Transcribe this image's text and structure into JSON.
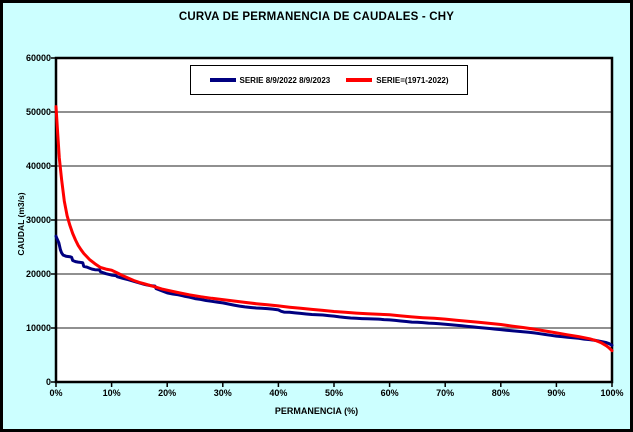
{
  "title": "CURVA DE PERMANENCIA DE CAUDALES - CHY",
  "colors": {
    "background": "#CCFFFF",
    "plot_background": "#FFFFFF",
    "gridline": "#808080",
    "frame": "#000000",
    "series_blue": "#000080",
    "series_red": "#FF0000"
  },
  "legend": {
    "items": [
      {
        "label": "SERIE 8/9/2022 8/9/2023",
        "color": "#000080"
      },
      {
        "label": "SERIE=(1971-2022)",
        "color": "#FF0000"
      }
    ]
  },
  "axes": {
    "xlabel": "PERMANENCIA (%)",
    "ylabel": "CAUDAL (m3/s)",
    "x_ticks": [
      "0%",
      "10%",
      "20%",
      "30%",
      "40%",
      "50%",
      "60%",
      "70%",
      "80%",
      "90%",
      "100%"
    ],
    "y_ticks": [
      "0",
      "10000",
      "20000",
      "30000",
      "40000",
      "50000",
      "60000"
    ]
  },
  "chart_data": {
    "type": "line",
    "title": "CURVA DE PERMANENCIA DE CAUDALES - CHY",
    "xlabel": "PERMANENCIA (%)",
    "ylabel": "CAUDAL (m3/s)",
    "xlim": [
      0,
      100
    ],
    "ylim": [
      0,
      60000
    ],
    "x_tick_step": 10,
    "y_tick_step": 10000,
    "grid": true,
    "legend_position": "top-center-inside",
    "series": [
      {
        "name": "SERIE 8/9/2022 8/9/2023",
        "color": "#000080",
        "points": [
          [
            0,
            27000
          ],
          [
            0.2,
            26500
          ],
          [
            0.5,
            25800
          ],
          [
            0.8,
            24500
          ],
          [
            1,
            23900
          ],
          [
            1.3,
            23500
          ],
          [
            1.8,
            23300
          ],
          [
            2.5,
            23200
          ],
          [
            2.8,
            23100
          ],
          [
            3,
            22500
          ],
          [
            3.5,
            22300
          ],
          [
            4,
            22200
          ],
          [
            4.8,
            22100
          ],
          [
            5,
            21400
          ],
          [
            5.5,
            21300
          ],
          [
            6,
            21100
          ],
          [
            6.5,
            20900
          ],
          [
            7,
            20800
          ],
          [
            7.8,
            20750
          ],
          [
            8,
            20400
          ],
          [
            9,
            20050
          ],
          [
            10,
            19800
          ],
          [
            10.8,
            19700
          ],
          [
            11,
            19500
          ],
          [
            12,
            19200
          ],
          [
            13,
            18950
          ],
          [
            14,
            18650
          ],
          [
            15,
            18350
          ],
          [
            16,
            18050
          ],
          [
            17,
            17850
          ],
          [
            17.8,
            17750
          ],
          [
            18,
            17300
          ],
          [
            19,
            16900
          ],
          [
            20,
            16500
          ],
          [
            21,
            16300
          ],
          [
            22,
            16150
          ],
          [
            23,
            15900
          ],
          [
            24,
            15700
          ],
          [
            25,
            15450
          ],
          [
            26,
            15300
          ],
          [
            27,
            15100
          ],
          [
            28,
            14950
          ],
          [
            29,
            14800
          ],
          [
            30,
            14650
          ],
          [
            31,
            14450
          ],
          [
            32,
            14250
          ],
          [
            33,
            14050
          ],
          [
            34,
            13900
          ],
          [
            35,
            13800
          ],
          [
            36,
            13700
          ],
          [
            37,
            13650
          ],
          [
            38,
            13600
          ],
          [
            39,
            13500
          ],
          [
            40,
            13350
          ],
          [
            40.5,
            13100
          ],
          [
            41,
            12950
          ],
          [
            42,
            12900
          ],
          [
            43,
            12800
          ],
          [
            44,
            12700
          ],
          [
            45,
            12600
          ],
          [
            46,
            12500
          ],
          [
            47,
            12450
          ],
          [
            48,
            12400
          ],
          [
            49,
            12300
          ],
          [
            50,
            12200
          ],
          [
            51,
            12050
          ],
          [
            52,
            11950
          ],
          [
            53,
            11850
          ],
          [
            54,
            11800
          ],
          [
            55,
            11750
          ],
          [
            56,
            11700
          ],
          [
            58,
            11650
          ],
          [
            59,
            11550
          ],
          [
            60,
            11500
          ],
          [
            61,
            11400
          ],
          [
            62,
            11300
          ],
          [
            63,
            11200
          ],
          [
            64,
            11100
          ],
          [
            65,
            11050
          ],
          [
            66,
            11000
          ],
          [
            67,
            10900
          ],
          [
            68,
            10850
          ],
          [
            69,
            10780
          ],
          [
            70,
            10700
          ],
          [
            71,
            10600
          ],
          [
            72,
            10500
          ],
          [
            73,
            10400
          ],
          [
            74,
            10300
          ],
          [
            75,
            10200
          ],
          [
            76,
            10100
          ],
          [
            77,
            10000
          ],
          [
            78,
            9900
          ],
          [
            79,
            9800
          ],
          [
            80,
            9700
          ],
          [
            81,
            9600
          ],
          [
            82,
            9500
          ],
          [
            83,
            9400
          ],
          [
            84,
            9300
          ],
          [
            85,
            9200
          ],
          [
            86,
            9100
          ],
          [
            87,
            8950
          ],
          [
            88,
            8800
          ],
          [
            89,
            8650
          ],
          [
            90,
            8500
          ],
          [
            91,
            8400
          ],
          [
            92,
            8300
          ],
          [
            93,
            8200
          ],
          [
            94,
            8100
          ],
          [
            95,
            7950
          ],
          [
            96,
            7850
          ],
          [
            97,
            7700
          ],
          [
            98,
            7500
          ],
          [
            99,
            7300
          ],
          [
            99.5,
            7100
          ],
          [
            100,
            6800
          ]
        ]
      },
      {
        "name": "SERIE=(1971-2022)",
        "color": "#FF0000",
        "points": [
          [
            0,
            51000
          ],
          [
            0.3,
            46000
          ],
          [
            0.6,
            41500
          ],
          [
            1,
            37500
          ],
          [
            1.5,
            33500
          ],
          [
            2,
            30800
          ],
          [
            2.5,
            29000
          ],
          [
            3,
            27500
          ],
          [
            3.5,
            26300
          ],
          [
            4,
            25300
          ],
          [
            4.5,
            24500
          ],
          [
            5,
            23800
          ],
          [
            6,
            22700
          ],
          [
            7,
            21900
          ],
          [
            8,
            21200
          ],
          [
            9,
            20900
          ],
          [
            10,
            20700
          ],
          [
            11,
            20200
          ],
          [
            12,
            19700
          ],
          [
            13,
            19250
          ],
          [
            14,
            18800
          ],
          [
            15,
            18450
          ],
          [
            16,
            18150
          ],
          [
            17,
            17850
          ],
          [
            18,
            17550
          ],
          [
            19,
            17250
          ],
          [
            20,
            17000
          ],
          [
            22,
            16550
          ],
          [
            24,
            16150
          ],
          [
            26,
            15800
          ],
          [
            28,
            15500
          ],
          [
            30,
            15250
          ],
          [
            32,
            15000
          ],
          [
            34,
            14750
          ],
          [
            36,
            14500
          ],
          [
            38,
            14300
          ],
          [
            40,
            14100
          ],
          [
            42,
            13850
          ],
          [
            44,
            13650
          ],
          [
            46,
            13450
          ],
          [
            48,
            13250
          ],
          [
            50,
            13050
          ],
          [
            52,
            12900
          ],
          [
            54,
            12750
          ],
          [
            56,
            12650
          ],
          [
            58,
            12550
          ],
          [
            60,
            12450
          ],
          [
            62,
            12250
          ],
          [
            64,
            12050
          ],
          [
            66,
            11900
          ],
          [
            68,
            11800
          ],
          [
            70,
            11650
          ],
          [
            72,
            11450
          ],
          [
            74,
            11250
          ],
          [
            76,
            11050
          ],
          [
            78,
            10850
          ],
          [
            80,
            10650
          ],
          [
            82,
            10350
          ],
          [
            84,
            10100
          ],
          [
            86,
            9800
          ],
          [
            88,
            9450
          ],
          [
            90,
            9100
          ],
          [
            92,
            8750
          ],
          [
            94,
            8400
          ],
          [
            95,
            8200
          ],
          [
            96,
            8000
          ],
          [
            97,
            7700
          ],
          [
            98,
            7300
          ],
          [
            99,
            6700
          ],
          [
            99.5,
            6300
          ],
          [
            100,
            5800
          ]
        ]
      }
    ]
  }
}
